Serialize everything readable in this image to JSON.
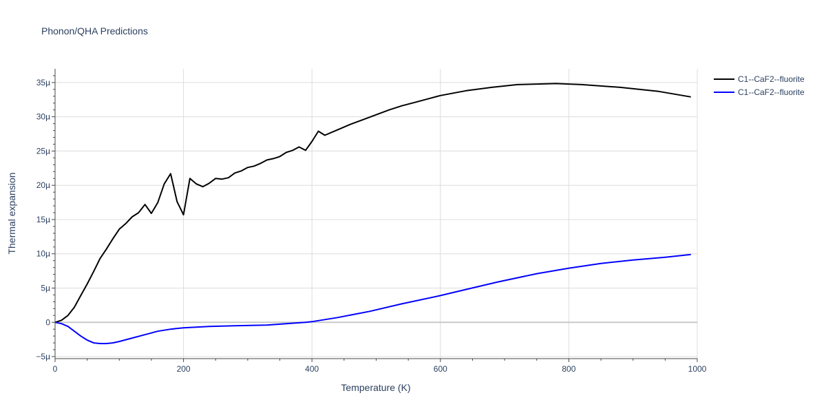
{
  "chart_data": {
    "type": "line",
    "title": "Phonon/QHA Predictions",
    "xlabel": "Temperature (K)",
    "ylabel": "Thermal expansion",
    "xlim": [
      0,
      1000
    ],
    "ylim": [
      -5.3,
      37
    ],
    "x_ticks": [
      0,
      200,
      400,
      600,
      800,
      1000
    ],
    "x_tick_labels": [
      "0",
      "200",
      "400",
      "600",
      "800",
      "1000"
    ],
    "y_ticks": [
      -5,
      0,
      5,
      10,
      15,
      20,
      25,
      30,
      35
    ],
    "y_tick_labels": [
      "−5µ",
      "0",
      "5µ",
      "10µ",
      "15µ",
      "20µ",
      "25µ",
      "30µ",
      "35µ"
    ],
    "grid": true,
    "legend_position": "top-right",
    "series": [
      {
        "name": "C1--CaF2--fluorite",
        "color": "#000000",
        "x": [
          0,
          10,
          20,
          30,
          40,
          50,
          60,
          70,
          80,
          90,
          100,
          110,
          120,
          130,
          140,
          150,
          160,
          170,
          180,
          190,
          200,
          210,
          220,
          230,
          240,
          250,
          260,
          270,
          280,
          290,
          300,
          310,
          320,
          330,
          340,
          350,
          360,
          370,
          380,
          390,
          400,
          410,
          420,
          440,
          460,
          480,
          500,
          520,
          540,
          560,
          580,
          600,
          640,
          680,
          720,
          760,
          780,
          820,
          880,
          940,
          990
        ],
        "y": [
          0,
          0.3,
          1.0,
          2.2,
          3.9,
          5.6,
          7.4,
          9.3,
          10.7,
          12.2,
          13.6,
          14.4,
          15.4,
          16.0,
          17.2,
          15.9,
          17.5,
          20.2,
          21.7,
          17.6,
          15.7,
          21.0,
          20.2,
          19.8,
          20.3,
          21.0,
          20.9,
          21.1,
          21.8,
          22.1,
          22.6,
          22.8,
          23.2,
          23.7,
          23.9,
          24.2,
          24.8,
          25.1,
          25.6,
          25.1,
          26.4,
          27.9,
          27.3,
          28.1,
          28.9,
          29.6,
          30.3,
          31.0,
          31.6,
          32.1,
          32.6,
          33.1,
          33.8,
          34.3,
          34.7,
          34.8,
          34.85,
          34.7,
          34.3,
          33.7,
          32.9
        ]
      },
      {
        "name": "C1--CaF2--fluorite",
        "color": "#0000ff",
        "x": [
          0,
          10,
          20,
          30,
          40,
          50,
          60,
          70,
          80,
          90,
          100,
          120,
          140,
          160,
          180,
          200,
          220,
          240,
          280,
          330,
          360,
          390,
          400,
          440,
          490,
          540,
          600,
          640,
          690,
          750,
          800,
          850,
          900,
          950,
          990
        ],
        "y": [
          0,
          -0.2,
          -0.6,
          -1.3,
          -2.0,
          -2.6,
          -3.0,
          -3.1,
          -3.1,
          -3.0,
          -2.8,
          -2.3,
          -1.8,
          -1.3,
          -1.0,
          -0.8,
          -0.7,
          -0.6,
          -0.5,
          -0.4,
          -0.2,
          0.0,
          0.1,
          0.7,
          1.6,
          2.7,
          3.9,
          4.8,
          5.9,
          7.1,
          7.9,
          8.6,
          9.1,
          9.5,
          9.9
        ]
      }
    ]
  }
}
